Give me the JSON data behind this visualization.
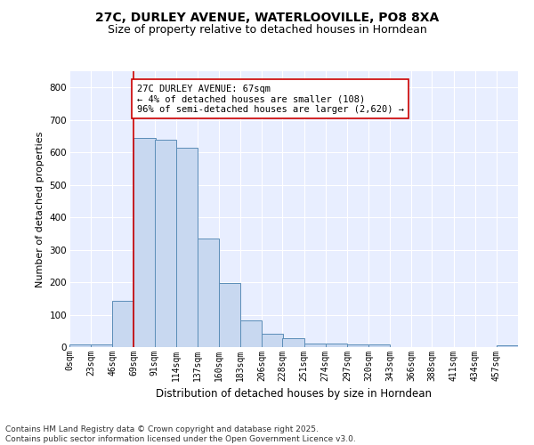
{
  "title1": "27C, DURLEY AVENUE, WATERLOOVILLE, PO8 8XA",
  "title2": "Size of property relative to detached houses in Horndean",
  "xlabel": "Distribution of detached houses by size in Horndean",
  "ylabel": "Number of detached properties",
  "bin_labels": [
    "0sqm",
    "23sqm",
    "46sqm",
    "69sqm",
    "91sqm",
    "114sqm",
    "137sqm",
    "160sqm",
    "183sqm",
    "206sqm",
    "228sqm",
    "251sqm",
    "274sqm",
    "297sqm",
    "320sqm",
    "343sqm",
    "366sqm",
    "388sqm",
    "411sqm",
    "434sqm",
    "457sqm"
  ],
  "bar_heights": [
    7,
    8,
    143,
    645,
    640,
    615,
    335,
    198,
    82,
    40,
    27,
    12,
    12,
    8,
    8,
    0,
    0,
    0,
    0,
    0,
    6
  ],
  "bin_edges": [
    0,
    23,
    46,
    69,
    91,
    114,
    137,
    160,
    183,
    206,
    228,
    251,
    274,
    297,
    320,
    343,
    366,
    388,
    411,
    434,
    457
  ],
  "bar_color": "#c8d8f0",
  "bar_edge_color": "#5b8db8",
  "vline_x": 69,
  "vline_color": "#cc0000",
  "annotation_text": "27C DURLEY AVENUE: 67sqm\n← 4% of detached houses are smaller (108)\n96% of semi-detached houses are larger (2,620) →",
  "annotation_box_color": "white",
  "annotation_box_edge_color": "#cc0000",
  "ylim": [
    0,
    850
  ],
  "yticks": [
    0,
    100,
    200,
    300,
    400,
    500,
    600,
    700,
    800
  ],
  "background_color": "#e8eeff",
  "footer_text": "Contains HM Land Registry data © Crown copyright and database right 2025.\nContains public sector information licensed under the Open Government Licence v3.0.",
  "title1_fontsize": 10,
  "title2_fontsize": 9,
  "xlabel_fontsize": 8.5,
  "ylabel_fontsize": 8,
  "annotation_fontsize": 7.5,
  "footer_fontsize": 6.5,
  "tick_fontsize": 7
}
